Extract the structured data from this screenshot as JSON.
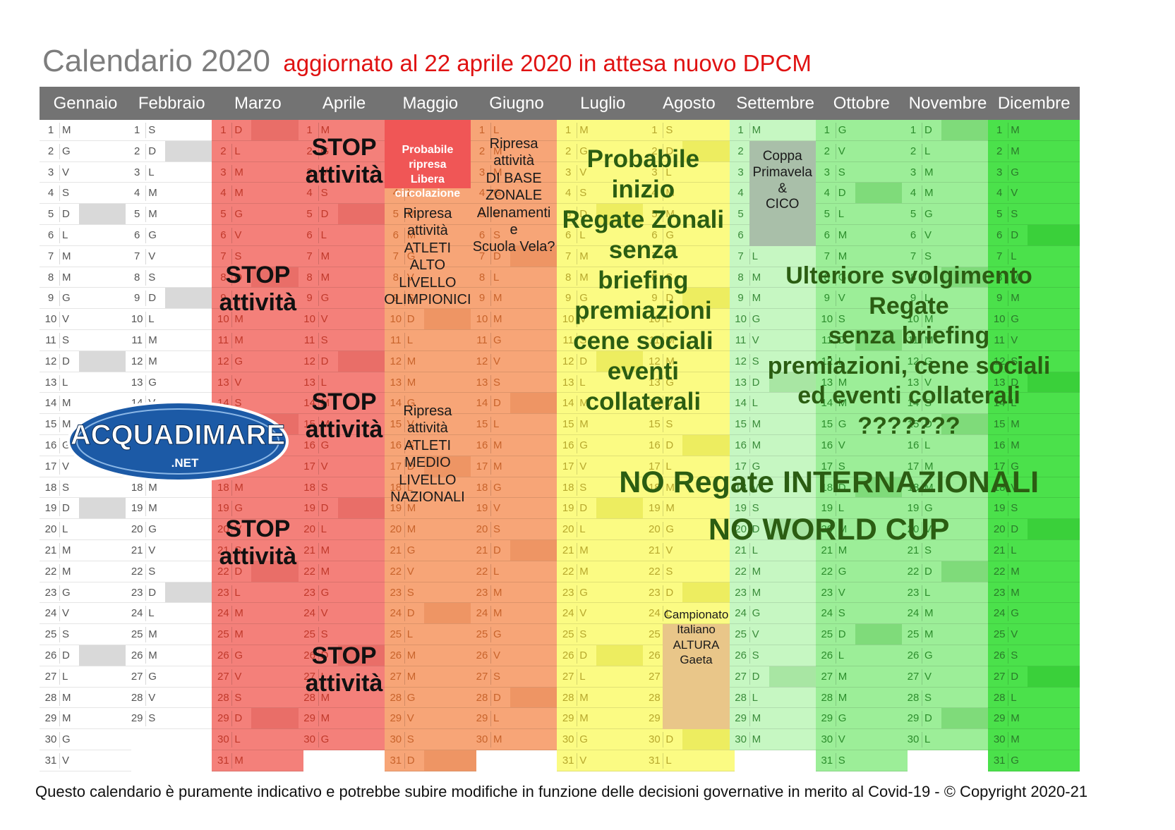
{
  "header": {
    "title": "Calendario 2020",
    "subtitle": "aggiornato al 22 aprile 2020 in attesa nuovo DPCM"
  },
  "months": [
    {
      "name": "Gennaio",
      "color": "#ffffff",
      "days": [
        "M",
        "G",
        "V",
        "S",
        "D",
        "L",
        "M",
        "M",
        "G",
        "V",
        "S",
        "D",
        "L",
        "M",
        "M",
        "G",
        "V",
        "S",
        "D",
        "L",
        "M",
        "M",
        "G",
        "V",
        "S",
        "D",
        "L",
        "M",
        "M",
        "G",
        "V"
      ]
    },
    {
      "name": "Febbraio",
      "color": "#ffffff",
      "days": [
        "S",
        "D",
        "L",
        "M",
        "M",
        "G",
        "V",
        "S",
        "D",
        "L",
        "M",
        "M",
        "G",
        "V",
        "S",
        "D",
        "L",
        "M",
        "M",
        "G",
        "V",
        "S",
        "D",
        "L",
        "M",
        "M",
        "G",
        "V",
        "S"
      ]
    },
    {
      "name": "Marzo",
      "color": "#f4807a",
      "days": [
        "D",
        "L",
        "M",
        "M",
        "G",
        "V",
        "S",
        "D",
        "L",
        "M",
        "M",
        "G",
        "V",
        "S",
        "D",
        "L",
        "M",
        "M",
        "G",
        "V",
        "S",
        "D",
        "L",
        "M",
        "M",
        "G",
        "V",
        "S",
        "D",
        "L",
        "M"
      ]
    },
    {
      "name": "Aprile",
      "color": "#f4807a",
      "days": [
        "M",
        "G",
        "V",
        "S",
        "D",
        "L",
        "M",
        "M",
        "G",
        "V",
        "S",
        "D",
        "L",
        "M",
        "M",
        "G",
        "V",
        "S",
        "D",
        "L",
        "M",
        "M",
        "G",
        "V",
        "S",
        "D",
        "L",
        "M",
        "M",
        "G"
      ]
    },
    {
      "name": "Maggio",
      "color": "#f7a577",
      "days": [
        "V",
        "S",
        "D",
        "L",
        "M",
        "M",
        "G",
        "V",
        "S",
        "D",
        "L",
        "M",
        "M",
        "G",
        "V",
        "S",
        "D",
        "L",
        "M",
        "M",
        "G",
        "V",
        "S",
        "D",
        "L",
        "M",
        "M",
        "G",
        "V",
        "S",
        "D"
      ]
    },
    {
      "name": "Giugno",
      "color": "#f7a577",
      "days": [
        "L",
        "M",
        "M",
        "G",
        "V",
        "S",
        "D",
        "L",
        "M",
        "M",
        "G",
        "V",
        "S",
        "D",
        "L",
        "M",
        "M",
        "G",
        "V",
        "S",
        "D",
        "L",
        "M",
        "M",
        "G",
        "V",
        "S",
        "D",
        "L",
        "M"
      ]
    },
    {
      "name": "Luglio",
      "color": "#fbfb83",
      "days": [
        "M",
        "G",
        "V",
        "S",
        "D",
        "L",
        "M",
        "M",
        "G",
        "V",
        "S",
        "D",
        "L",
        "M",
        "M",
        "G",
        "V",
        "S",
        "D",
        "L",
        "M",
        "M",
        "G",
        "V",
        "S",
        "D",
        "L",
        "M",
        "M",
        "G",
        "V"
      ]
    },
    {
      "name": "Agosto",
      "color": "#fbfb83",
      "days": [
        "S",
        "D",
        "L",
        "M",
        "M",
        "G",
        "V",
        "S",
        "D",
        "L",
        "M",
        "M",
        "G",
        "V",
        "S",
        "D",
        "L",
        "M",
        "M",
        "G",
        "V",
        "S",
        "D",
        "L",
        "M",
        "M",
        "G",
        "V",
        "S",
        "D",
        "L"
      ]
    },
    {
      "name": "Settembre",
      "color": "#c6f7c2",
      "days": [
        "M",
        "M",
        "G",
        "V",
        "S",
        "D",
        "L",
        "M",
        "M",
        "G",
        "V",
        "S",
        "D",
        "L",
        "M",
        "M",
        "G",
        "V",
        "S",
        "D",
        "L",
        "M",
        "M",
        "G",
        "V",
        "S",
        "D",
        "L",
        "M",
        "M"
      ]
    },
    {
      "name": "Ottobre",
      "color": "#9cee98",
      "days": [
        "G",
        "V",
        "S",
        "D",
        "L",
        "M",
        "M",
        "G",
        "V",
        "S",
        "D",
        "L",
        "M",
        "M",
        "G",
        "V",
        "S",
        "D",
        "L",
        "M",
        "M",
        "G",
        "V",
        "S",
        "D",
        "L",
        "M",
        "M",
        "G",
        "V",
        "S"
      ]
    },
    {
      "name": "Novembre",
      "color": "#9cee98",
      "days": [
        "D",
        "L",
        "M",
        "M",
        "G",
        "V",
        "S",
        "D",
        "L",
        "M",
        "M",
        "G",
        "V",
        "S",
        "D",
        "L",
        "M",
        "M",
        "G",
        "V",
        "S",
        "D",
        "L",
        "M",
        "M",
        "G",
        "V",
        "S",
        "D",
        "L"
      ]
    },
    {
      "name": "Dicembre",
      "color": "#4be14b",
      "days": [
        "M",
        "M",
        "G",
        "V",
        "S",
        "D",
        "L",
        "M",
        "M",
        "G",
        "V",
        "S",
        "D",
        "L",
        "M",
        "M",
        "G",
        "V",
        "S",
        "D",
        "L",
        "M",
        "M",
        "G",
        "V",
        "S",
        "D",
        "L",
        "M",
        "M",
        "G"
      ]
    }
  ],
  "annotations": {
    "stop": "STOP",
    "attivita": "attività",
    "maggio_top": [
      "Probabile",
      "ripresa",
      "Libera",
      "circolazione"
    ],
    "maggio_alto": [
      "Ripresa",
      "attività",
      "ATLETI",
      "ALTO",
      "LIVELLO",
      "OLIMPIONICI"
    ],
    "maggio_medio": [
      "Ripresa",
      "attività",
      "ATLETI",
      "MEDIO",
      "LIVELLO",
      "NAZIONALI"
    ],
    "giugno": [
      "Ripresa",
      "attività",
      "DI BASE",
      "ZONALE",
      "Allenamenti",
      "e",
      "Scuola Vela?"
    ],
    "luglio": [
      "Probabile",
      "inizio",
      "Regate Zonali",
      "senza",
      "briefing",
      "premiazioni",
      "cene sociali",
      "eventi collaterali"
    ],
    "settembre_box": [
      "Coppa",
      "Primavela",
      "&",
      "CICO"
    ],
    "ottobre": [
      "Ulteriore svolgimento Regate",
      "senza briefing",
      "premiazioni, cene sociali",
      "ed eventi collaterali",
      "???????"
    ],
    "no_regate": [
      "NO Regate INTERNAZIONALI",
      "NO WORLD CUP"
    ],
    "campionato": [
      "Campionato",
      "Italiano",
      "ALTURA",
      "Gaeta"
    ]
  },
  "logo": {
    "text": "ACQUADIMARE",
    "suffix": ".NET"
  },
  "footer": "Questo calendario è puramente indicativo e potrebbe subire modifiche in funzione delle decisioni governative in merito al Covid-19 - © Copyright 2020-21"
}
